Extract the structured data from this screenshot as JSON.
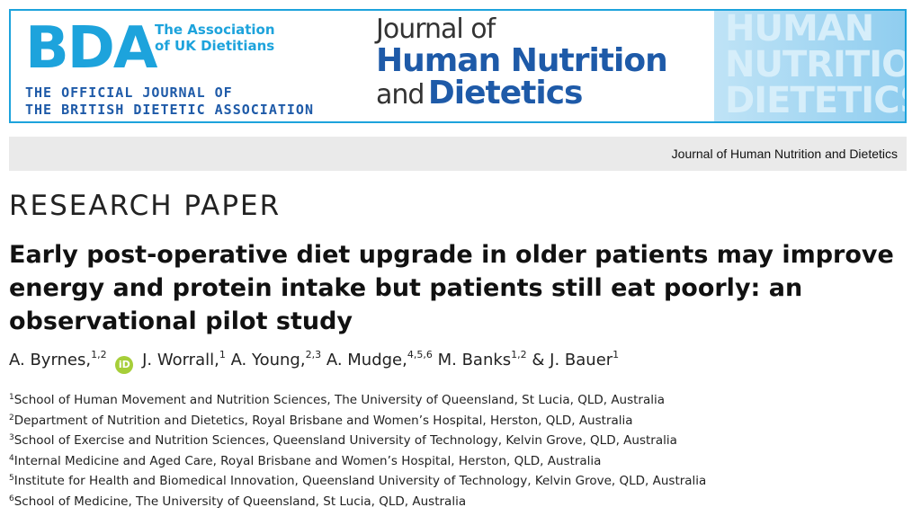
{
  "banner": {
    "bda_logo": "BDA",
    "association": [
      "The Association",
      "of UK Dietitians"
    ],
    "official_journal": [
      "THE OFFICIAL JOURNAL OF",
      "THE BRITISH DIETETIC ASSOCIATION"
    ],
    "journal_title": {
      "line1": "Journal of",
      "line2": "Human Nutrition",
      "line3_and": "and",
      "line3_word": "Dietetics"
    },
    "decorative_words": [
      "HUMAN",
      "NUTRITION",
      "DIETETICS"
    ]
  },
  "journal_bar": "Journal of Human Nutrition and Dietetics",
  "section_label": "RESEARCH PAPER",
  "title": "Early post-operative diet upgrade in older patients may improve energy and protein intake but patients still eat poorly: an observational pilot study",
  "orcid_label": "iD",
  "authors": [
    {
      "name": "A. Byrnes,",
      "aff": "1,2",
      "orcid": true
    },
    {
      "name": "J. Worrall,",
      "aff": "1"
    },
    {
      "name": "A. Young,",
      "aff": "2,3"
    },
    {
      "name": "A. Mudge,",
      "aff": "4,5,6"
    },
    {
      "name": "M. Banks",
      "aff": "1,2"
    },
    {
      "name": "& J. Bauer",
      "aff": "1"
    }
  ],
  "affiliations": [
    {
      "num": "1",
      "text": "School of Human Movement and Nutrition Sciences, The University of Queensland, St Lucia, QLD, Australia"
    },
    {
      "num": "2",
      "text": "Department of Nutrition and Dietetics, Royal Brisbane and Women’s Hospital, Herston, QLD, Australia"
    },
    {
      "num": "3",
      "text": "School of Exercise and Nutrition Sciences, Queensland University of Technology, Kelvin Grove, QLD, Australia"
    },
    {
      "num": "4",
      "text": "Internal Medicine and Aged Care, Royal Brisbane and Women’s Hospital, Herston, QLD, Australia"
    },
    {
      "num": "5",
      "text": "Institute for Health and Biomedical Innovation, Queensland University of Technology, Kelvin Grove, QLD, Australia"
    },
    {
      "num": "6",
      "text": "School of Medicine, The University of Queensland, St Lucia, QLD, Australia"
    }
  ]
}
